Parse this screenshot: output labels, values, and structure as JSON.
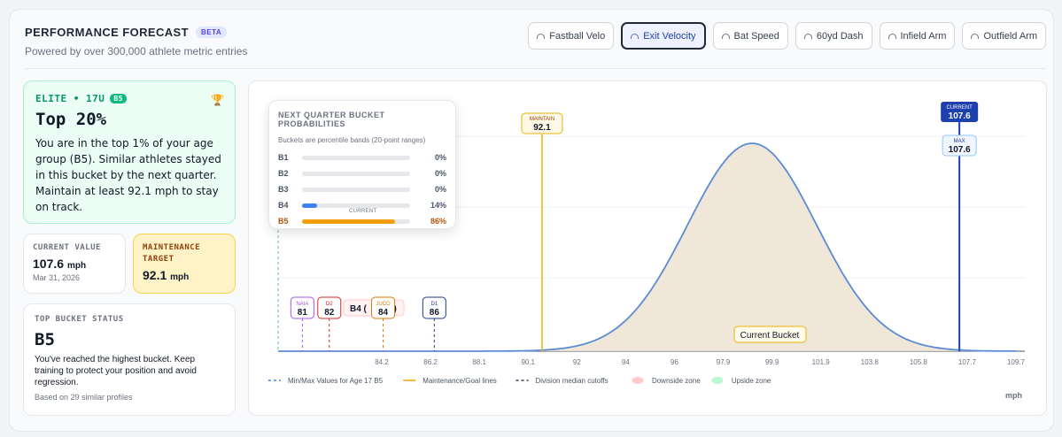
{
  "header": {
    "title": "PERFORMANCE FORECAST",
    "badge": "BETA",
    "subtitle": "Powered by over 300,000 athlete metric entries"
  },
  "tabs": [
    {
      "label": "Fastball Velo",
      "active": false
    },
    {
      "label": "Exit Velocity",
      "active": true
    },
    {
      "label": "Bat Speed",
      "active": false
    },
    {
      "label": "60yd Dash",
      "active": false
    },
    {
      "label": "Infield Arm",
      "active": false
    },
    {
      "label": "Outfield Arm",
      "active": false
    }
  ],
  "elite": {
    "tag": "ELITE • 17U",
    "badge": "B5",
    "headline": "Top 20%",
    "text": "You are in the top 1% of your age group (B5). Similar athletes stayed in this bucket by the next quarter. Maintain at least 92.1 mph to stay on track."
  },
  "current_value": {
    "label": "CURRENT VALUE",
    "value": "107.6",
    "unit": "mph",
    "date": "Mar 31, 2026"
  },
  "maintenance": {
    "label": "MAINTENANCE TARGET",
    "value": "92.1",
    "unit": "mph"
  },
  "top_bucket": {
    "label": "TOP BUCKET STATUS",
    "value": "B5",
    "text": "You've reached the highest bucket. Keep training to protect your position and avoid regression.",
    "note": "Based on 29 similar profiles"
  },
  "popup": {
    "title": "NEXT QUARTER BUCKET PROBABILITIES",
    "subtitle": "Buckets are percentile bands (20-point ranges)",
    "current_tag": "CURRENT",
    "buckets": [
      {
        "name": "B1",
        "pct": "0%",
        "value": 0
      },
      {
        "name": "B2",
        "pct": "0%",
        "value": 0
      },
      {
        "name": "B3",
        "pct": "0%",
        "value": 0
      },
      {
        "name": "B4",
        "pct": "14%",
        "value": 14
      },
      {
        "name": "B5",
        "pct": "86%",
        "value": 86
      }
    ]
  },
  "chart_data": {
    "type": "area",
    "xlabel": "mph",
    "x_ticks": [
      "84.2",
      "86.2",
      "88.1",
      "90.1",
      "92",
      "94",
      "96",
      "97.9",
      "99.9",
      "101.9",
      "103.8",
      "105.8",
      "107.7",
      "109.7"
    ],
    "xlim": [
      82.3,
      109.7
    ],
    "distribution": {
      "mean": 99.9,
      "sd": 2.4
    },
    "current": {
      "label": "CURRENT",
      "value": "107.6",
      "x": 107.6
    },
    "max": {
      "label": "MAX",
      "value": "107.6",
      "x": 107.6
    },
    "maintain": {
      "label": "MAINTAIN",
      "value": "92.1",
      "x": 92.1
    },
    "cutoffs": [
      {
        "label": "NAIA",
        "value": "81",
        "x": 83.2,
        "color": "#a855f7"
      },
      {
        "label": "D2",
        "value": "82",
        "x": 84.2,
        "color": "#dc2626"
      },
      {
        "label": "JUCO",
        "value": "84",
        "x": 86.2,
        "color": "#d97706"
      },
      {
        "label": "D1",
        "value": "86",
        "x": 88.1,
        "color": "#1e3a8a"
      }
    ],
    "min_line_x": 82.3,
    "b4_fragment": "B4 (",
    "b4_fragment_end": "6)",
    "current_bucket_label": "Current Bucket",
    "legend": [
      {
        "label": "Min/Max Values for Age 17 B5",
        "style": "dash",
        "color": "#3b82f6"
      },
      {
        "label": "Maintenance/Goal lines",
        "style": "solid",
        "color": "#f59e0b"
      },
      {
        "label": "Division median cutoffs",
        "style": "dash",
        "color": "#334155"
      },
      {
        "label": "Downside zone",
        "style": "zone",
        "color": "#fecaca"
      },
      {
        "label": "Upside zone",
        "style": "zone",
        "color": "#bbf7d0"
      }
    ],
    "colors": {
      "curve": "#5b8bd6",
      "fill": "#ede3d1",
      "current": "#1e40af",
      "maintain": "#eab308"
    }
  }
}
